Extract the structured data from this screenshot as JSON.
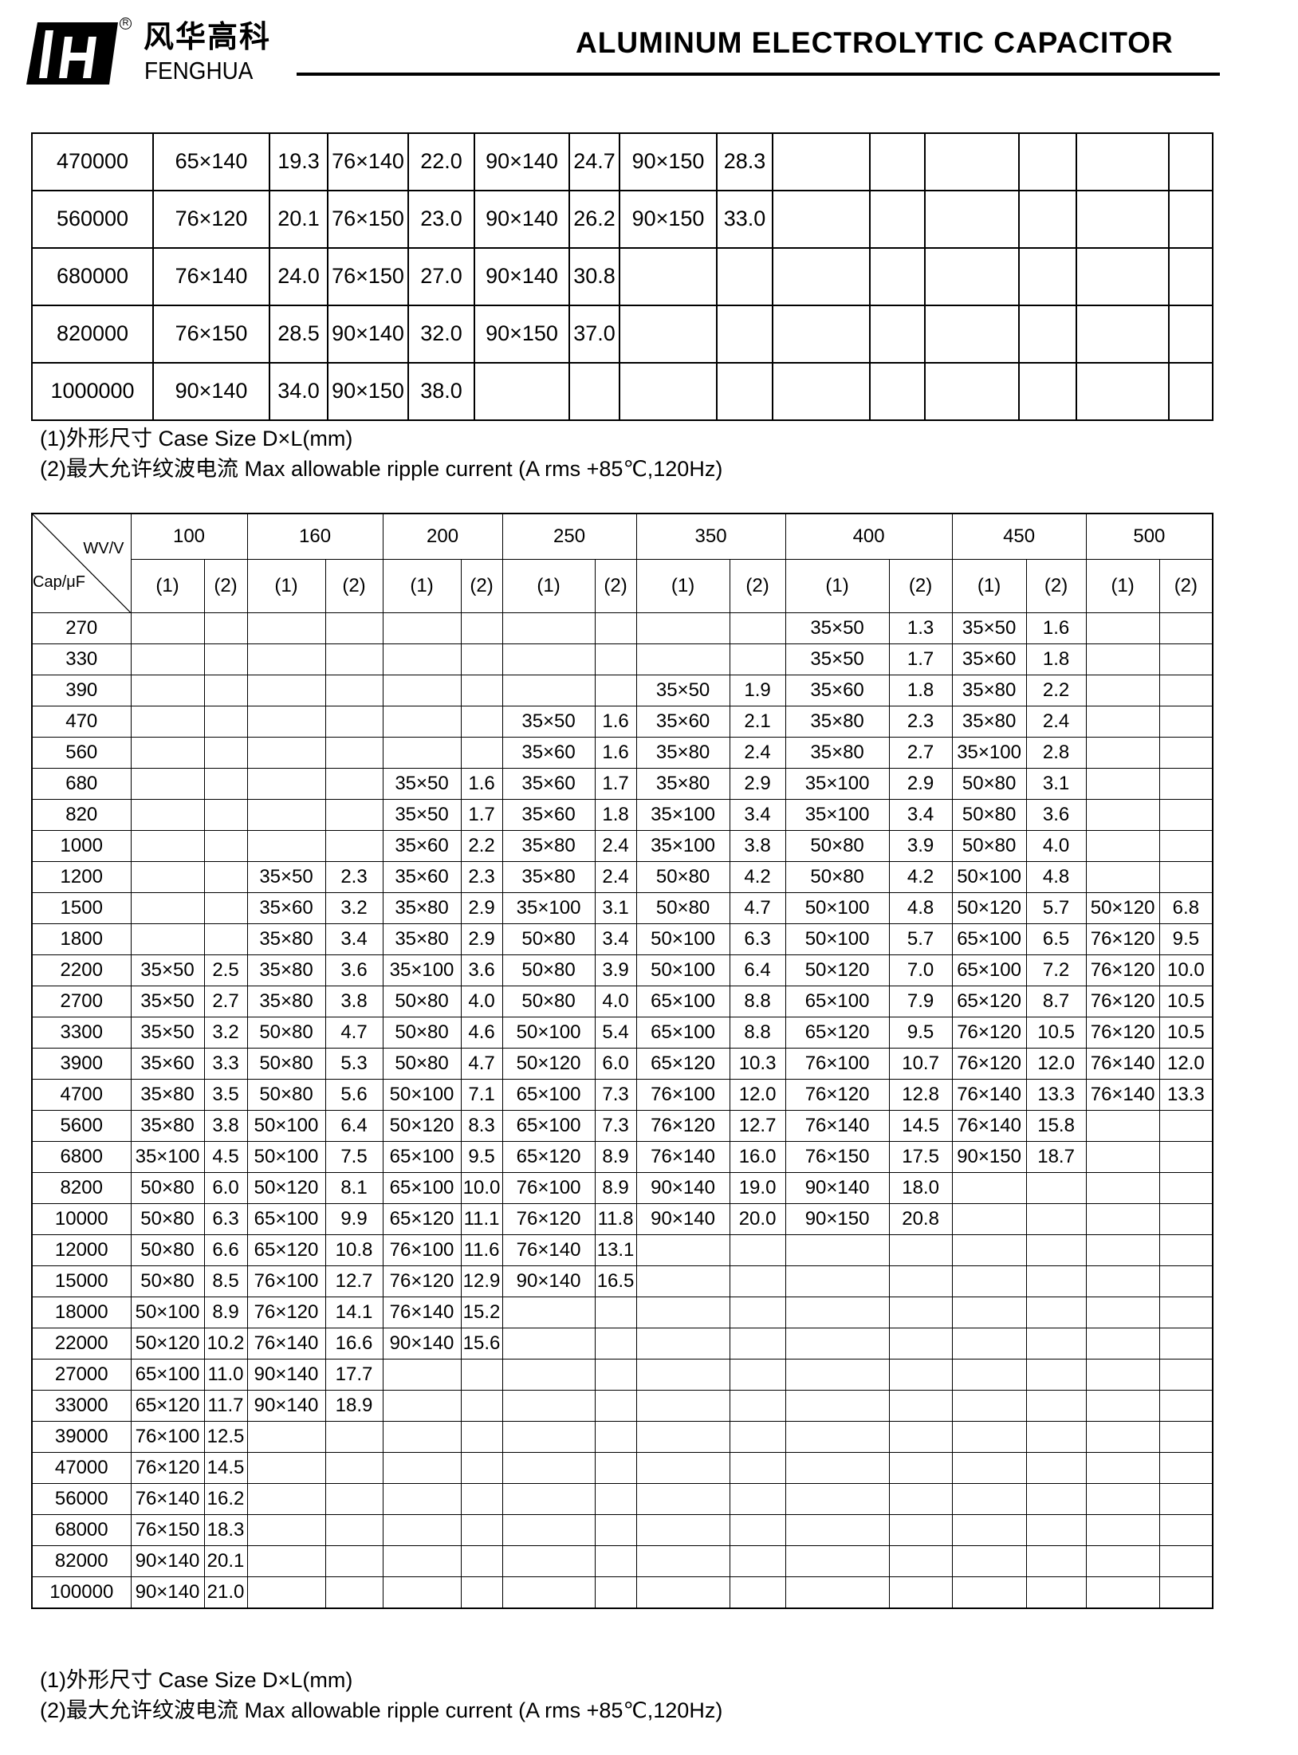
{
  "header": {
    "brand_cn": "风华高科",
    "brand_en": "FENGHUA",
    "registered_mark": "R",
    "title": "ALUMINUM ELECTROLYTIC CAPACITOR"
  },
  "top_table": {
    "rows": [
      [
        "470000",
        "65×140",
        "19.3",
        "76×140",
        "22.0",
        "90×140",
        "24.7",
        "90×150",
        "28.3",
        "",
        "",
        "",
        "",
        "",
        ""
      ],
      [
        "560000",
        "76×120",
        "20.1",
        "76×150",
        "23.0",
        "90×140",
        "26.2",
        "90×150",
        "33.0",
        "",
        "",
        "",
        "",
        "",
        ""
      ],
      [
        "680000",
        "76×140",
        "24.0",
        "76×150",
        "27.0",
        "90×140",
        "30.8",
        "",
        "",
        "",
        "",
        "",
        "",
        "",
        ""
      ],
      [
        "820000",
        "76×150",
        "28.5",
        "90×140",
        "32.0",
        "90×150",
        "37.0",
        "",
        "",
        "",
        "",
        "",
        "",
        "",
        ""
      ],
      [
        "1000000",
        "90×140",
        "34.0",
        "90×150",
        "38.0",
        "",
        "",
        "",
        "",
        "",
        "",
        "",
        "",
        "",
        ""
      ]
    ]
  },
  "top_notes": {
    "note1": "(1)外形尺寸   Case Size D×L(mm)",
    "note2": "(2)最大允许纹波电流  Max allowable ripple current    (A rms +85℃,120Hz)"
  },
  "bottom_table": {
    "corner_wv": "WV/V",
    "corner_cap": "Cap/μF",
    "voltages": [
      "100",
      "160",
      "200",
      "250",
      "350",
      "400",
      "450",
      "500"
    ],
    "sub_headers": [
      "(1)",
      "(2)"
    ],
    "rows": [
      [
        "270",
        "",
        "",
        "",
        "",
        "",
        "",
        "",
        "",
        "",
        "",
        "35×50",
        "1.3",
        "35×50",
        "1.6",
        "",
        ""
      ],
      [
        "330",
        "",
        "",
        "",
        "",
        "",
        "",
        "",
        "",
        "",
        "",
        "35×50",
        "1.7",
        "35×60",
        "1.8",
        "",
        ""
      ],
      [
        "390",
        "",
        "",
        "",
        "",
        "",
        "",
        "",
        "",
        "35×50",
        "1.9",
        "35×60",
        "1.8",
        "35×80",
        "2.2",
        "",
        ""
      ],
      [
        "470",
        "",
        "",
        "",
        "",
        "",
        "",
        "35×50",
        "1.6",
        "35×60",
        "2.1",
        "35×80",
        "2.3",
        "35×80",
        "2.4",
        "",
        ""
      ],
      [
        "560",
        "",
        "",
        "",
        "",
        "",
        "",
        "35×60",
        "1.6",
        "35×80",
        "2.4",
        "35×80",
        "2.7",
        "35×100",
        "2.8",
        "",
        ""
      ],
      [
        "680",
        "",
        "",
        "",
        "",
        "35×50",
        "1.6",
        "35×60",
        "1.7",
        "35×80",
        "2.9",
        "35×100",
        "2.9",
        "50×80",
        "3.1",
        "",
        ""
      ],
      [
        "820",
        "",
        "",
        "",
        "",
        "35×50",
        "1.7",
        "35×60",
        "1.8",
        "35×100",
        "3.4",
        "35×100",
        "3.4",
        "50×80",
        "3.6",
        "",
        ""
      ],
      [
        "1000",
        "",
        "",
        "",
        "",
        "35×60",
        "2.2",
        "35×80",
        "2.4",
        "35×100",
        "3.8",
        "50×80",
        "3.9",
        "50×80",
        "4.0",
        "",
        ""
      ],
      [
        "1200",
        "",
        "",
        "35×50",
        "2.3",
        "35×60",
        "2.3",
        "35×80",
        "2.4",
        "50×80",
        "4.2",
        "50×80",
        "4.2",
        "50×100",
        "4.8",
        "",
        ""
      ],
      [
        "1500",
        "",
        "",
        "35×60",
        "3.2",
        "35×80",
        "2.9",
        "35×100",
        "3.1",
        "50×80",
        "4.7",
        "50×100",
        "4.8",
        "50×120",
        "5.7",
        "50×120",
        "6.8"
      ],
      [
        "1800",
        "",
        "",
        "35×80",
        "3.4",
        "35×80",
        "2.9",
        "50×80",
        "3.4",
        "50×100",
        "6.3",
        "50×100",
        "5.7",
        "65×100",
        "6.5",
        "76×120",
        "9.5"
      ],
      [
        "2200",
        "35×50",
        "2.5",
        "35×80",
        "3.6",
        "35×100",
        "3.6",
        "50×80",
        "3.9",
        "50×100",
        "6.4",
        "50×120",
        "7.0",
        "65×100",
        "7.2",
        "76×120",
        "10.0"
      ],
      [
        "2700",
        "35×50",
        "2.7",
        "35×80",
        "3.8",
        "50×80",
        "4.0",
        "50×80",
        "4.0",
        "65×100",
        "8.8",
        "65×100",
        "7.9",
        "65×120",
        "8.7",
        "76×120",
        "10.5"
      ],
      [
        "3300",
        "35×50",
        "3.2",
        "50×80",
        "4.7",
        "50×80",
        "4.6",
        "50×100",
        "5.4",
        "65×100",
        "8.8",
        "65×120",
        "9.5",
        "76×120",
        "10.5",
        "76×120",
        "10.5"
      ],
      [
        "3900",
        "35×60",
        "3.3",
        "50×80",
        "5.3",
        "50×80",
        "4.7",
        "50×120",
        "6.0",
        "65×120",
        "10.3",
        "76×100",
        "10.7",
        "76×120",
        "12.0",
        "76×140",
        "12.0"
      ],
      [
        "4700",
        "35×80",
        "3.5",
        "50×80",
        "5.6",
        "50×100",
        "7.1",
        "65×100",
        "7.3",
        "76×100",
        "12.0",
        "76×120",
        "12.8",
        "76×140",
        "13.3",
        "76×140",
        "13.3"
      ],
      [
        "5600",
        "35×80",
        "3.8",
        "50×100",
        "6.4",
        "50×120",
        "8.3",
        "65×100",
        "7.3",
        "76×120",
        "12.7",
        "76×140",
        "14.5",
        "76×140",
        "15.8",
        "",
        ""
      ],
      [
        "6800",
        "35×100",
        "4.5",
        "50×100",
        "7.5",
        "65×100",
        "9.5",
        "65×120",
        "8.9",
        "76×140",
        "16.0",
        "76×150",
        "17.5",
        "90×150",
        "18.7",
        "",
        ""
      ],
      [
        "8200",
        "50×80",
        "6.0",
        "50×120",
        "8.1",
        "65×100",
        "10.0",
        "76×100",
        "8.9",
        "90×140",
        "19.0",
        "90×140",
        "18.0",
        "",
        "",
        "",
        ""
      ],
      [
        "10000",
        "50×80",
        "6.3",
        "65×100",
        "9.9",
        "65×120",
        "11.1",
        "76×120",
        "11.8",
        "90×140",
        "20.0",
        "90×150",
        "20.8",
        "",
        "",
        "",
        ""
      ],
      [
        "12000",
        "50×80",
        "6.6",
        "65×120",
        "10.8",
        "76×100",
        "11.6",
        "76×140",
        "13.1",
        "",
        "",
        "",
        "",
        "",
        "",
        "",
        ""
      ],
      [
        "15000",
        "50×80",
        "8.5",
        "76×100",
        "12.7",
        "76×120",
        "12.9",
        "90×140",
        "16.5",
        "",
        "",
        "",
        "",
        "",
        "",
        "",
        ""
      ],
      [
        "18000",
        "50×100",
        "8.9",
        "76×120",
        "14.1",
        "76×140",
        "15.2",
        "",
        "",
        "",
        "",
        "",
        "",
        "",
        "",
        "",
        ""
      ],
      [
        "22000",
        "50×120",
        "10.2",
        "76×140",
        "16.6",
        "90×140",
        "15.6",
        "",
        "",
        "",
        "",
        "",
        "",
        "",
        "",
        "",
        ""
      ],
      [
        "27000",
        "65×100",
        "11.0",
        "90×140",
        "17.7",
        "",
        "",
        "",
        "",
        "",
        "",
        "",
        "",
        "",
        "",
        "",
        ""
      ],
      [
        "33000",
        "65×120",
        "11.7",
        "90×140",
        "18.9",
        "",
        "",
        "",
        "",
        "",
        "",
        "",
        "",
        "",
        "",
        "",
        ""
      ],
      [
        "39000",
        "76×100",
        "12.5",
        "",
        "",
        "",
        "",
        "",
        "",
        "",
        "",
        "",
        "",
        "",
        "",
        "",
        ""
      ],
      [
        "47000",
        "76×120",
        "14.5",
        "",
        "",
        "",
        "",
        "",
        "",
        "",
        "",
        "",
        "",
        "",
        "",
        "",
        ""
      ],
      [
        "56000",
        "76×140",
        "16.2",
        "",
        "",
        "",
        "",
        "",
        "",
        "",
        "",
        "",
        "",
        "",
        "",
        "",
        ""
      ],
      [
        "68000",
        "76×150",
        "18.3",
        "",
        "",
        "",
        "",
        "",
        "",
        "",
        "",
        "",
        "",
        "",
        "",
        "",
        ""
      ],
      [
        "82000",
        "90×140",
        "20.1",
        "",
        "",
        "",
        "",
        "",
        "",
        "",
        "",
        "",
        "",
        "",
        "",
        "",
        ""
      ],
      [
        "100000",
        "90×140",
        "21.0",
        "",
        "",
        "",
        "",
        "",
        "",
        "",
        "",
        "",
        "",
        "",
        "",
        "",
        ""
      ]
    ]
  },
  "bottom_notes": {
    "note1": "(1)外形尺寸   Case Size D×L(mm)",
    "note2": "(2)最大允许纹波电流  Max allowable ripple current    (A rms    +85℃,120Hz)"
  }
}
